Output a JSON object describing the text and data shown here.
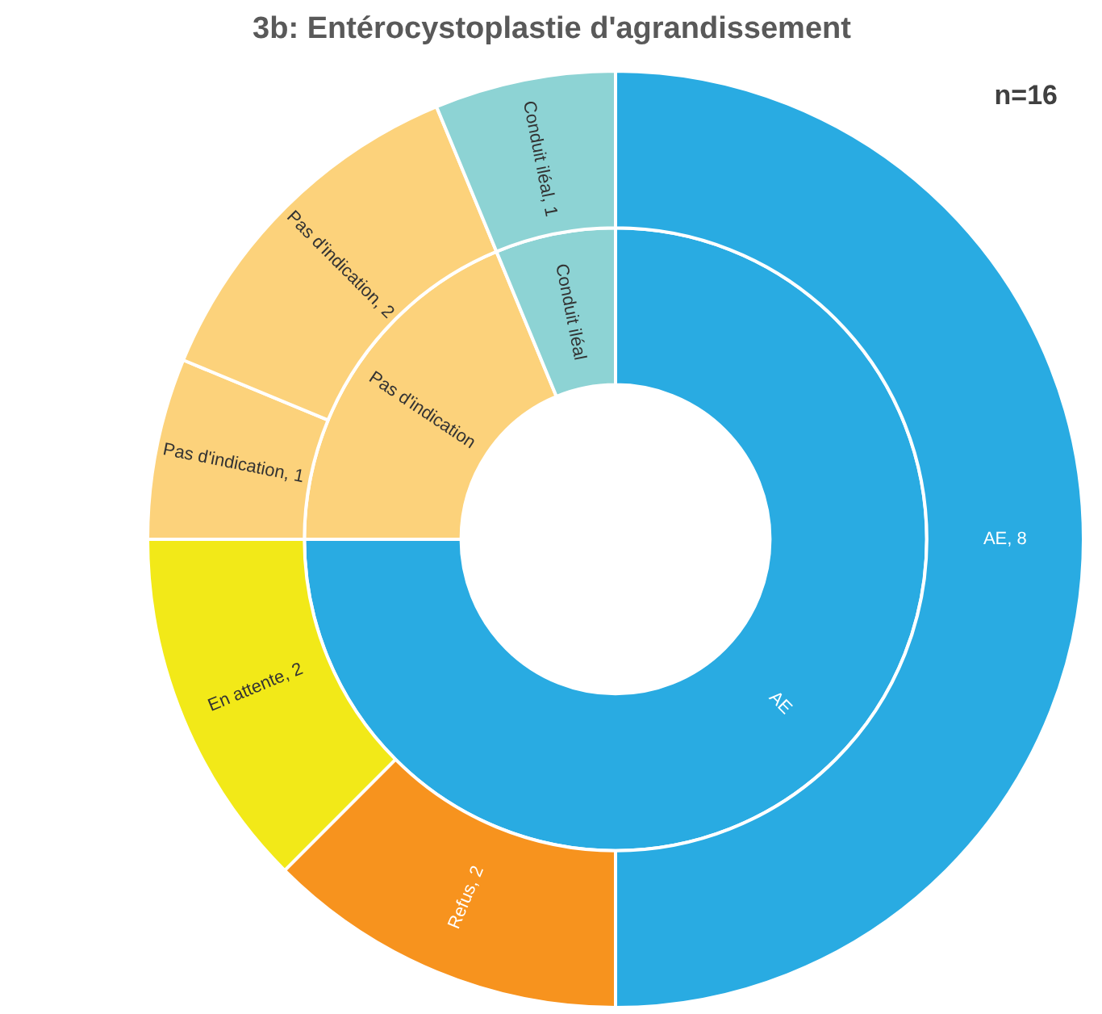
{
  "chart_data": {
    "type": "donut",
    "title": "3b: Entérocystoplastie d'agrandissement",
    "annotations": [
      "n=16"
    ],
    "categories": [
      null,
      null,
      null,
      null,
      null,
      null
    ],
    "colors": [
      "#29abe2",
      "#f7931e",
      "#f2e918",
      "#fcd27b",
      "#fcd27b",
      "#8dd3d4"
    ],
    "series": [
      {
        "values": [
          75,
          null,
          null,
          18.75,
          null,
          6.25
        ],
        "value_labels": [
          "AE",
          null,
          null,
          "Pas d'indication",
          null,
          "Conduit iléal"
        ]
      },
      {
        "values": [
          8,
          2,
          2,
          1,
          2,
          1
        ],
        "value_labels": [
          "AE, 8",
          "Refus, 2",
          "En attente, 2",
          "Pas d'indication, 1",
          "Pas d'indication, 2",
          "Conduit iléal, 1"
        ]
      }
    ]
  }
}
